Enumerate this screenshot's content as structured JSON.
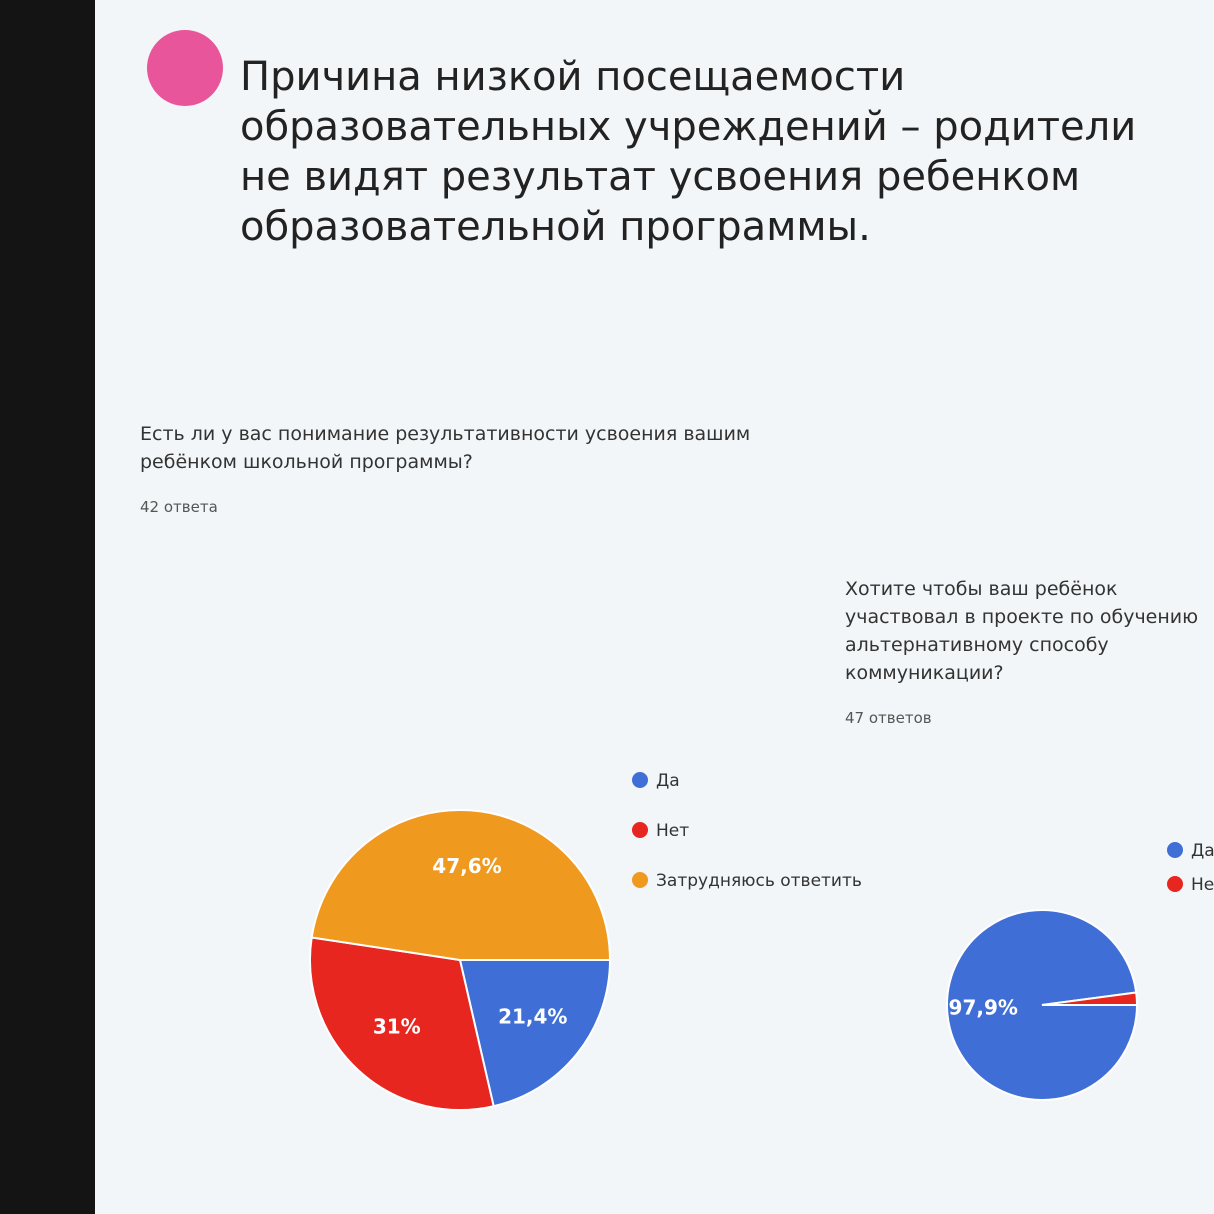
{
  "slide": {
    "title": "Причина низкой посещаемости образовательных учреждений – родители не видят результат усвоения ребенком образовательной программы."
  },
  "chart_data": [
    {
      "type": "pie",
      "title": "Есть ли у вас понимание результативности усвоения вашим ребёнком школьной программы?",
      "subtitle": "42 ответа",
      "categories": [
        "Да",
        "Нет",
        "Затрудняюсь ответить"
      ],
      "values": [
        21.4,
        31,
        47.6
      ],
      "value_labels": [
        "21,4%",
        "31%",
        "47,6%"
      ],
      "colors": [
        "#3f6fd6",
        "#e6261f",
        "#f0991f"
      ]
    },
    {
      "type": "pie",
      "title": "Хотите чтобы ваш ребёнок участвовал в проекте по обучению альтернативному способу коммуникации?",
      "subtitle": "47 ответов",
      "categories": [
        "Да",
        "Нет"
      ],
      "values": [
        97.9,
        2.1
      ],
      "value_labels": [
        "97,9%",
        null
      ],
      "colors": [
        "#3f6fd6",
        "#e6261f"
      ]
    }
  ]
}
